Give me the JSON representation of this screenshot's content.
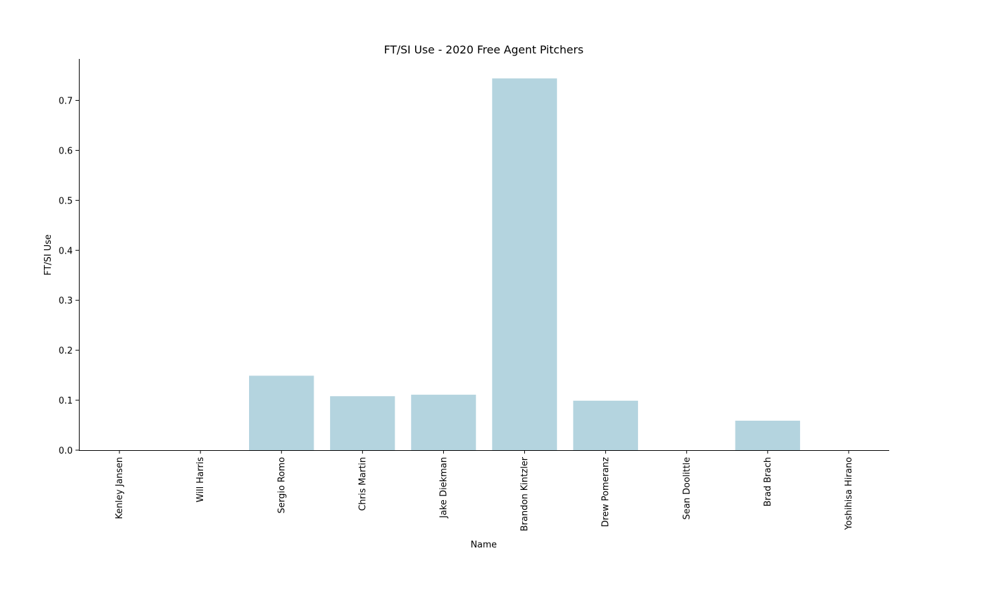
{
  "chart_data": {
    "type": "bar",
    "title": "FT/SI Use - 2020 Free Agent Pitchers",
    "xlabel": "Name",
    "ylabel": "FT/SI Use",
    "categories": [
      "Kenley Jansen",
      "Will Harris",
      "Sergio Romo",
      "Chris Martin",
      "Jake Diekman",
      "Brandon Kintzler",
      "Drew Pomeranz",
      "Sean Doolittle",
      "Brad Brach",
      "Yoshihisa Hirano"
    ],
    "values": [
      0.0,
      0.0,
      0.149,
      0.108,
      0.111,
      0.744,
      0.099,
      0.0,
      0.059,
      0.0
    ],
    "ylim": [
      0,
      0.783
    ],
    "yticks": [
      "0.0",
      "0.1",
      "0.2",
      "0.3",
      "0.4",
      "0.5",
      "0.6",
      "0.7"
    ],
    "grid": false,
    "bar_color": "#b4d4df"
  }
}
